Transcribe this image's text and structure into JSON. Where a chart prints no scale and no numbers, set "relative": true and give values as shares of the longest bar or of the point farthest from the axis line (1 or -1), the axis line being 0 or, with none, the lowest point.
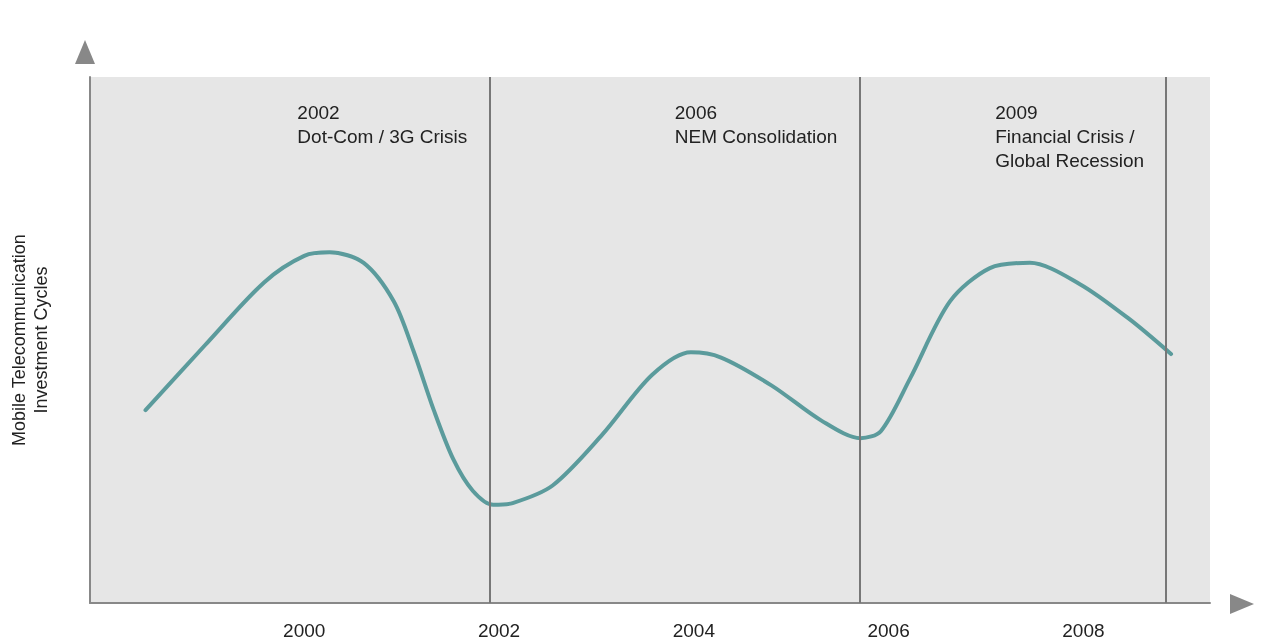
{
  "chart_data": {
    "type": "line",
    "relative": true,
    "ylabel": "Mobile Telecommunication\nInvestment Cycles",
    "x": [
      1998.37,
      1998.98,
      1999.59,
      2000.0,
      2000.26,
      2000.61,
      2000.92,
      2001.12,
      2001.33,
      2001.53,
      2001.73,
      2001.94,
      2002.14,
      2002.55,
      2003.06,
      2003.57,
      2003.97,
      2004.28,
      2004.8,
      2005.31,
      2005.71,
      2005.92,
      2006.22,
      2006.63,
      2007.04,
      2007.45,
      2007.96,
      2008.47,
      2008.9
    ],
    "series": [
      {
        "color": "#5b9b9c",
        "values": [
          0.55,
          0.735,
          0.915,
          0.99,
          1.0,
          0.97,
          0.86,
          0.72,
          0.55,
          0.41,
          0.32,
          0.28,
          0.285,
          0.335,
          0.48,
          0.65,
          0.715,
          0.7,
          0.62,
          0.52,
          0.47,
          0.49,
          0.64,
          0.86,
          0.955,
          0.97,
          0.91,
          0.81,
          0.71
        ]
      }
    ],
    "xlim": [
      1997.8,
      2009.3
    ],
    "xticks": [
      2000,
      2002,
      2004,
      2006,
      2008
    ],
    "grid": false,
    "marker": "none",
    "line_style": "solid",
    "ref_lines": [
      {
        "axis": "x",
        "value": 2001.9,
        "label": "2002\nDot-Com / 3G Crisis",
        "color": "#777777"
      },
      {
        "axis": "x",
        "value": 2005.7,
        "label": "2006\nNEM Consolidation",
        "color": "#777777"
      },
      {
        "axis": "x",
        "value": 2008.85,
        "label": "2009\nFinancial Crisis /\nGlobal Recession",
        "color": "#777777"
      }
    ]
  }
}
